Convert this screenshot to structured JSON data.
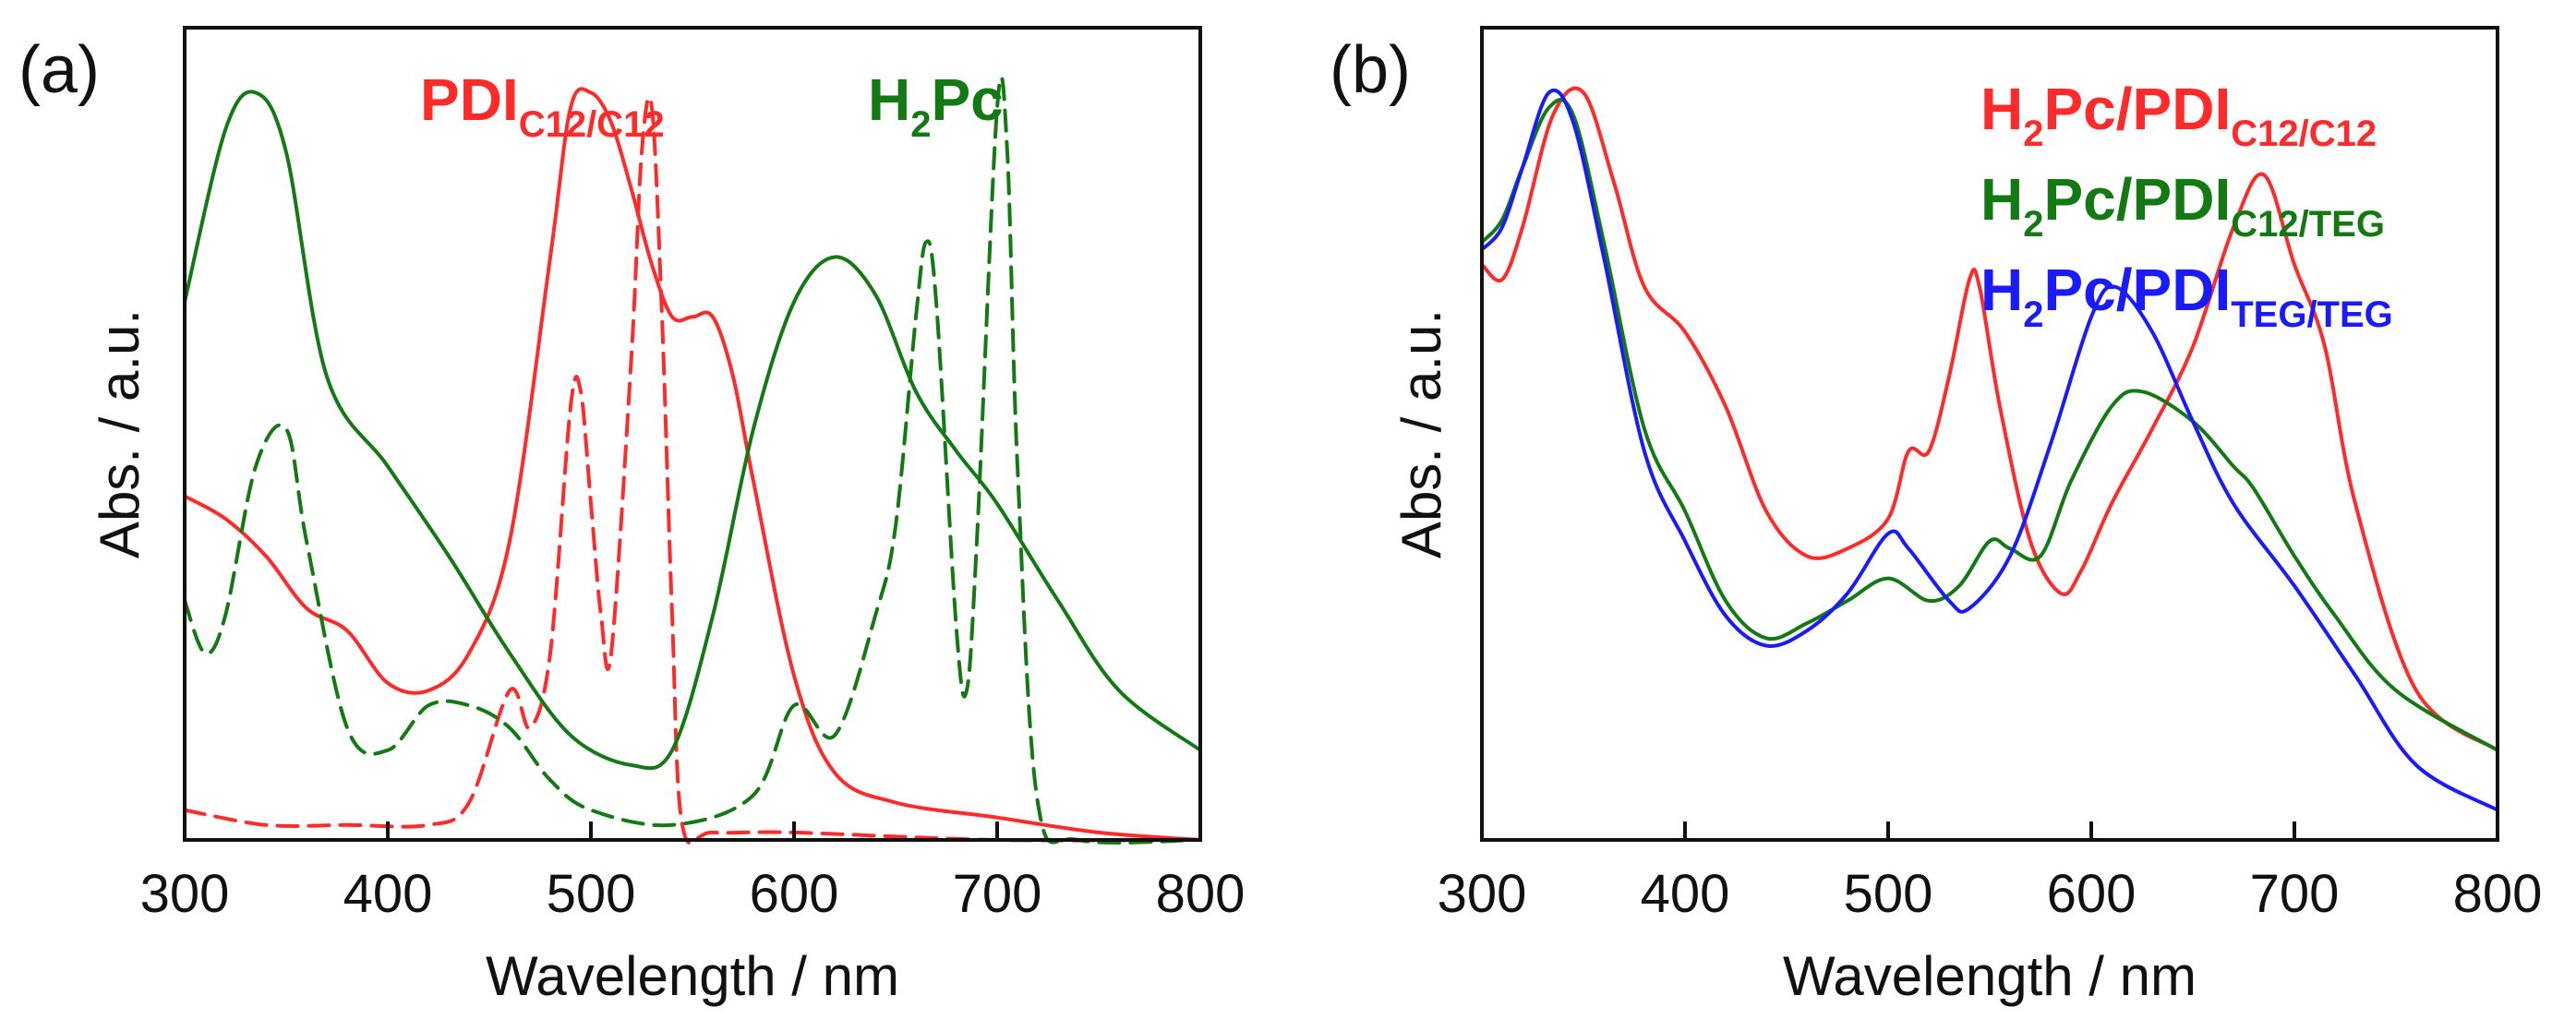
{
  "colors": {
    "red": "#ff2a2a",
    "green": "#137a13",
    "blue": "#1a1aff",
    "axis": "#111111"
  },
  "chart_data": [
    {
      "panel": "(a)",
      "type": "line",
      "xlabel": "Wavelength / nm",
      "ylabel": "Abs. / a.u.",
      "xlim": [
        300,
        800
      ],
      "ylim": [
        0,
        1
      ],
      "xticks": [
        "300",
        "400",
        "500",
        "600",
        "700",
        "800"
      ],
      "legend": [
        {
          "main": "PDI",
          "sub": "C12/C12",
          "color": "red"
        },
        {
          "main": "H",
          "sub": "2",
          "tail": "Pc",
          "color": "green"
        }
      ],
      "series": [
        {
          "name": "PDI C12/C12 (solid)",
          "color": "red",
          "dash": false,
          "x": [
            300,
            320,
            340,
            360,
            380,
            400,
            420,
            440,
            460,
            480,
            490,
            500,
            510,
            520,
            530,
            540,
            550,
            560,
            570,
            580,
            600,
            620,
            650,
            700,
            750,
            800
          ],
          "y": [
            0.46,
            0.43,
            0.38,
            0.31,
            0.28,
            0.21,
            0.2,
            0.25,
            0.4,
            0.78,
            0.98,
            1.0,
            0.96,
            0.87,
            0.77,
            0.7,
            0.7,
            0.7,
            0.62,
            0.48,
            0.22,
            0.09,
            0.05,
            0.03,
            0.01,
            0.0
          ]
        },
        {
          "name": "PDI C12/C12 (dashed)",
          "color": "red",
          "dash": true,
          "x": [
            300,
            340,
            380,
            420,
            440,
            460,
            470,
            480,
            490,
            495,
            500,
            505,
            510,
            520,
            525,
            530,
            535,
            540,
            545,
            560,
            600,
            700,
            800
          ],
          "y": [
            0.04,
            0.02,
            0.02,
            0.02,
            0.05,
            0.2,
            0.15,
            0.25,
            0.58,
            0.6,
            0.45,
            0.3,
            0.25,
            0.65,
            0.92,
            0.98,
            0.7,
            0.3,
            0.02,
            0.01,
            0.01,
            0.0,
            0.0
          ]
        },
        {
          "name": "H2Pc (solid)",
          "color": "green",
          "dash": false,
          "x": [
            300,
            320,
            335,
            350,
            370,
            400,
            430,
            460,
            490,
            520,
            540,
            560,
            580,
            600,
            620,
            640,
            660,
            680,
            700,
            730,
            760,
            800
          ],
          "y": [
            0.72,
            0.95,
            1.0,
            0.92,
            0.62,
            0.5,
            0.38,
            0.25,
            0.14,
            0.1,
            0.12,
            0.3,
            0.55,
            0.72,
            0.78,
            0.73,
            0.6,
            0.52,
            0.45,
            0.32,
            0.2,
            0.12
          ]
        },
        {
          "name": "H2Pc (dashed)",
          "color": "green",
          "dash": true,
          "x": [
            300,
            310,
            320,
            335,
            350,
            360,
            380,
            400,
            420,
            440,
            460,
            480,
            500,
            540,
            580,
            600,
            620,
            640,
            650,
            660,
            665,
            670,
            680,
            685,
            690,
            700,
            705,
            710,
            720,
            740,
            800
          ],
          "y": [
            0.32,
            0.25,
            0.3,
            0.5,
            0.55,
            0.4,
            0.15,
            0.12,
            0.18,
            0.18,
            0.15,
            0.08,
            0.04,
            0.02,
            0.06,
            0.18,
            0.14,
            0.3,
            0.42,
            0.7,
            0.8,
            0.72,
            0.28,
            0.2,
            0.4,
            0.98,
            0.92,
            0.5,
            0.05,
            0.0,
            0.0
          ]
        }
      ]
    },
    {
      "panel": "(b)",
      "type": "line",
      "xlabel": "Wavelength / nm",
      "ylabel": "Abs. / a.u.",
      "xlim": [
        300,
        800
      ],
      "ylim": [
        0,
        1
      ],
      "xticks": [
        "300",
        "400",
        "500",
        "600",
        "700",
        "800"
      ],
      "legend": [
        {
          "main": "H",
          "sub": "2",
          "tail": "Pc/PDI",
          "sub2": "C12/C12",
          "color": "red"
        },
        {
          "main": "H",
          "sub": "2",
          "tail": "Pc/PDI",
          "sub2": "C12/TEG",
          "color": "green"
        },
        {
          "main": "H",
          "sub": "2",
          "tail": "Pc/PDI",
          "sub2": "TEG/TEG",
          "color": "blue"
        }
      ],
      "series": [
        {
          "name": "H2Pc/PDI C12/C12",
          "color": "red",
          "dash": false,
          "x": [
            300,
            310,
            320,
            335,
            350,
            365,
            380,
            400,
            420,
            440,
            460,
            480,
            500,
            510,
            520,
            530,
            540,
            545,
            555,
            570,
            585,
            595,
            610,
            630,
            650,
            670,
            685,
            700,
            715,
            730,
            760,
            800
          ],
          "y": [
            0.77,
            0.75,
            0.82,
            0.97,
            1.0,
            0.88,
            0.74,
            0.68,
            0.58,
            0.44,
            0.38,
            0.39,
            0.43,
            0.52,
            0.52,
            0.62,
            0.75,
            0.74,
            0.58,
            0.4,
            0.33,
            0.36,
            0.45,
            0.55,
            0.66,
            0.82,
            0.89,
            0.77,
            0.66,
            0.45,
            0.2,
            0.12
          ]
        },
        {
          "name": "H2Pc/PDI C12/TEG",
          "color": "green",
          "dash": false,
          "x": [
            300,
            310,
            320,
            333,
            345,
            360,
            380,
            400,
            420,
            440,
            460,
            480,
            500,
            520,
            535,
            550,
            560,
            575,
            590,
            610,
            625,
            650,
            670,
            680,
            700,
            720,
            750,
            800
          ],
          "y": [
            0.8,
            0.83,
            0.9,
            0.98,
            0.97,
            0.8,
            0.55,
            0.44,
            0.32,
            0.27,
            0.29,
            0.32,
            0.35,
            0.32,
            0.34,
            0.4,
            0.39,
            0.38,
            0.48,
            0.58,
            0.6,
            0.56,
            0.5,
            0.47,
            0.38,
            0.3,
            0.2,
            0.12
          ]
        },
        {
          "name": "H2Pc/PDI TEG/TEG",
          "color": "blue",
          "dash": false,
          "x": [
            300,
            310,
            320,
            333,
            345,
            360,
            380,
            400,
            420,
            440,
            460,
            480,
            500,
            510,
            530,
            540,
            560,
            580,
            600,
            612,
            630,
            650,
            670,
            700,
            730,
            760,
            800
          ],
          "y": [
            0.79,
            0.82,
            0.9,
            1.0,
            0.96,
            0.78,
            0.52,
            0.4,
            0.3,
            0.26,
            0.28,
            0.33,
            0.41,
            0.39,
            0.32,
            0.31,
            0.38,
            0.53,
            0.7,
            0.74,
            0.68,
            0.56,
            0.45,
            0.34,
            0.22,
            0.1,
            0.04
          ]
        }
      ]
    }
  ]
}
